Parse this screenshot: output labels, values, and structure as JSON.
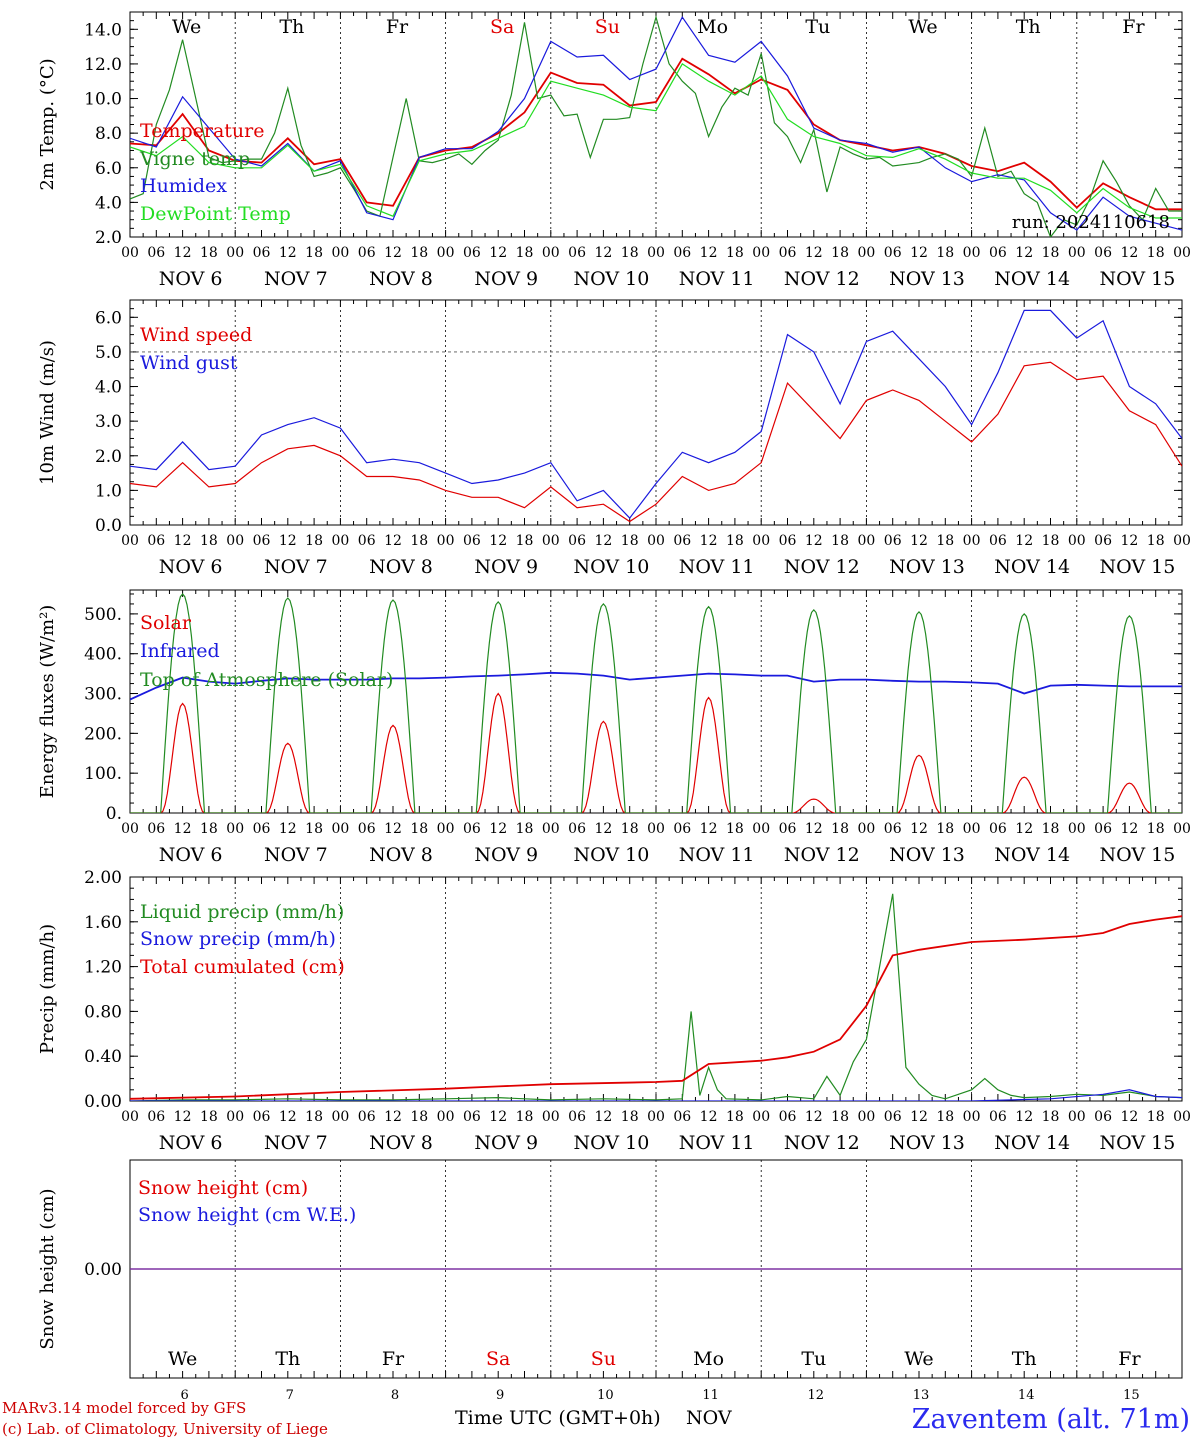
{
  "footer": {
    "credit_line1": "MARv3.14 model forced by GFS",
    "credit_line2": "(c) Lab. of Climatology, University of Liege",
    "time_label": "Time UTC (GMT+0h)",
    "month_label": "NOV",
    "station": "Zaventem (alt. 71m)"
  },
  "colors": {
    "temperature": "#e00000",
    "vigne": "#228b22",
    "humidex": "#1a1add",
    "dewpoint": "#22dd22",
    "snow_line": "#7a2aa0",
    "credit": "#cc0000",
    "station": "#2a2aee"
  },
  "days": {
    "weekday_labels": [
      "We",
      "Th",
      "Fr",
      "Sa",
      "Su",
      "Mo",
      "Tu",
      "We",
      "Th",
      "Fr"
    ],
    "weekend_flags": [
      false,
      false,
      false,
      true,
      true,
      false,
      false,
      false,
      false,
      false
    ],
    "date_labels": [
      "NOV  6",
      "NOV  7",
      "NOV  8",
      "NOV  9",
      "NOV 10",
      "NOV 11",
      "NOV 12",
      "NOV 13",
      "NOV 14",
      "NOV 15"
    ],
    "day_numbers": [
      "6",
      "7",
      "8",
      "9",
      "10",
      "11",
      "12",
      "13",
      "14",
      "15"
    ],
    "hour_labels": [
      "00",
      "06",
      "12",
      "18"
    ],
    "final_hour_label": "00"
  },
  "chart_data": [
    {
      "type": "line",
      "ylabel": "2m Temp. (°C)",
      "ylim": [
        2.0,
        15.0
      ],
      "yticks": [
        "2.0",
        "4.0",
        "6.0",
        "8.0",
        "10.0",
        "12.0",
        "14.0"
      ],
      "annotation": "run: 2024110618",
      "x_unit": "hours since NOV 6 00 UTC",
      "series": [
        {
          "name": "Temperature",
          "color": "#e00000",
          "x": [
            0,
            6,
            12,
            18,
            24,
            30,
            36,
            42,
            48,
            54,
            60,
            66,
            72,
            78,
            84,
            90,
            96,
            102,
            108,
            114,
            120,
            126,
            132,
            138,
            144,
            150,
            156,
            162,
            168,
            174,
            180,
            186,
            192,
            198,
            204,
            210,
            216,
            222,
            228,
            234,
            240
          ],
          "values": [
            7.4,
            7.3,
            9.1,
            7.0,
            6.4,
            6.3,
            7.7,
            6.2,
            6.5,
            4.0,
            3.8,
            6.6,
            7.0,
            7.2,
            8.0,
            9.2,
            11.5,
            10.9,
            10.8,
            9.6,
            9.8,
            12.3,
            11.4,
            10.3,
            11.1,
            10.5,
            8.5,
            7.6,
            7.3,
            7.0,
            7.2,
            6.8,
            6.1,
            5.8,
            6.3,
            5.2,
            3.7,
            5.1,
            4.3,
            3.6,
            3.6
          ]
        },
        {
          "name": "Vigne temp",
          "color": "#228b22",
          "x": [
            0,
            3,
            6,
            9,
            12,
            15,
            18,
            21,
            24,
            27,
            30,
            33,
            36,
            39,
            42,
            45,
            48,
            51,
            54,
            57,
            60,
            63,
            66,
            69,
            72,
            75,
            78,
            81,
            84,
            87,
            90,
            93,
            96,
            99,
            102,
            105,
            108,
            111,
            114,
            117,
            120,
            123,
            126,
            129,
            132,
            135,
            138,
            141,
            144,
            147,
            150,
            153,
            156,
            159,
            162,
            165,
            168,
            171,
            174,
            177,
            180,
            183,
            186,
            189,
            192,
            195,
            198,
            201,
            204,
            207,
            210,
            213,
            216,
            219,
            222,
            225,
            228,
            231,
            234,
            237,
            240
          ],
          "values": [
            4.2,
            4.5,
            8.5,
            10.5,
            13.4,
            10.0,
            6.6,
            6.3,
            6.4,
            6.5,
            6.5,
            8.0,
            10.6,
            7.3,
            5.5,
            5.7,
            6.0,
            4.8,
            3.5,
            3.2,
            6.6,
            10.0,
            6.4,
            6.3,
            6.5,
            6.8,
            6.2,
            7.0,
            7.6,
            10.2,
            14.4,
            10.0,
            10.2,
            9.0,
            9.1,
            6.6,
            8.8,
            8.8,
            8.9,
            12.0,
            14.7,
            12.0,
            11.0,
            10.3,
            7.8,
            9.5,
            10.6,
            10.2,
            12.6,
            8.6,
            7.8,
            6.3,
            8.2,
            4.6,
            7.2,
            6.8,
            6.5,
            6.6,
            6.1,
            6.2,
            6.3,
            6.6,
            6.8,
            6.5,
            5.5,
            8.3,
            5.5,
            5.8,
            4.5,
            4.0,
            2.0,
            3.0,
            2.7,
            4.2,
            6.4,
            5.2,
            3.8,
            3.0,
            4.8,
            3.5,
            3.5
          ]
        },
        {
          "name": "Humidex",
          "color": "#1a1add",
          "x": [
            0,
            6,
            12,
            18,
            24,
            30,
            36,
            42,
            48,
            54,
            60,
            66,
            72,
            78,
            84,
            90,
            96,
            102,
            108,
            114,
            120,
            126,
            132,
            138,
            144,
            150,
            156,
            162,
            168,
            174,
            180,
            186,
            192,
            198,
            204,
            210,
            216,
            222,
            228,
            234,
            240
          ],
          "values": [
            7.7,
            7.2,
            10.1,
            8.3,
            6.5,
            6.1,
            7.4,
            5.8,
            6.4,
            3.4,
            3.0,
            6.6,
            7.1,
            7.1,
            8.1,
            10.0,
            13.3,
            12.4,
            12.5,
            11.1,
            11.7,
            14.7,
            12.5,
            12.1,
            13.3,
            11.3,
            8.3,
            7.6,
            7.4,
            6.9,
            7.2,
            6.0,
            5.2,
            5.6,
            5.3,
            3.4,
            2.4,
            4.3,
            3.2,
            2.8,
            2.4
          ]
        },
        {
          "name": "DewPoint Temp",
          "color": "#22dd22",
          "x": [
            0,
            6,
            12,
            18,
            24,
            30,
            36,
            42,
            48,
            54,
            60,
            66,
            72,
            78,
            84,
            90,
            96,
            102,
            108,
            114,
            120,
            126,
            132,
            138,
            144,
            150,
            156,
            162,
            168,
            174,
            180,
            186,
            192,
            198,
            204,
            210,
            216,
            222,
            228,
            234,
            240
          ],
          "values": [
            7.2,
            6.7,
            7.8,
            6.3,
            6.0,
            6.0,
            7.3,
            5.8,
            6.2,
            3.8,
            3.2,
            6.4,
            6.8,
            7.0,
            7.7,
            8.4,
            11.0,
            10.6,
            10.2,
            9.5,
            9.3,
            12.0,
            11.0,
            10.2,
            11.3,
            8.8,
            7.8,
            7.4,
            6.7,
            6.6,
            7.1,
            6.5,
            5.7,
            5.4,
            5.4,
            4.7,
            3.4,
            4.8,
            3.7,
            3.1,
            3.1
          ]
        }
      ]
    },
    {
      "type": "line",
      "ylabel": "10m Wind (m/s)",
      "ylim": [
        0.0,
        6.5
      ],
      "yticks": [
        "0.0",
        "1.0",
        "2.0",
        "3.0",
        "4.0",
        "5.0",
        "6.0"
      ],
      "reference_line": 5.0,
      "x_unit": "hours since NOV 6 00 UTC",
      "series": [
        {
          "name": "Wind speed",
          "color": "#e00000",
          "x": [
            0,
            6,
            12,
            18,
            24,
            30,
            36,
            42,
            48,
            54,
            60,
            66,
            72,
            78,
            84,
            90,
            96,
            102,
            108,
            114,
            120,
            126,
            132,
            138,
            144,
            150,
            156,
            162,
            168,
            174,
            180,
            186,
            192,
            198,
            204,
            210,
            216,
            222,
            228,
            234,
            240
          ],
          "values": [
            1.2,
            1.1,
            1.8,
            1.1,
            1.2,
            1.8,
            2.2,
            2.3,
            2.0,
            1.4,
            1.4,
            1.3,
            1.0,
            0.8,
            0.8,
            0.5,
            1.1,
            0.5,
            0.6,
            0.1,
            0.6,
            1.4,
            1.0,
            1.2,
            1.8,
            4.1,
            3.3,
            2.5,
            3.6,
            3.9,
            3.6,
            3.0,
            2.4,
            3.2,
            4.6,
            4.7,
            4.2,
            4.3,
            3.3,
            2.9,
            1.7
          ]
        },
        {
          "name": "Wind gust",
          "color": "#1a1add",
          "x": [
            0,
            6,
            12,
            18,
            24,
            30,
            36,
            42,
            48,
            54,
            60,
            66,
            72,
            78,
            84,
            90,
            96,
            102,
            108,
            114,
            120,
            126,
            132,
            138,
            144,
            150,
            156,
            162,
            168,
            174,
            180,
            186,
            192,
            198,
            204,
            210,
            216,
            222,
            228,
            234,
            240
          ],
          "values": [
            1.7,
            1.6,
            2.4,
            1.6,
            1.7,
            2.6,
            2.9,
            3.1,
            2.8,
            1.8,
            1.9,
            1.8,
            1.5,
            1.2,
            1.3,
            1.5,
            1.8,
            0.7,
            1.0,
            0.2,
            1.2,
            2.1,
            1.8,
            2.1,
            2.7,
            5.5,
            5.0,
            3.5,
            5.3,
            5.6,
            4.8,
            4.0,
            2.9,
            4.4,
            6.2,
            6.2,
            5.4,
            5.9,
            4.0,
            3.5,
            2.5
          ]
        }
      ]
    },
    {
      "type": "line",
      "ylabel": "Energy fluxes (W/m²)",
      "ylim": [
        0,
        560
      ],
      "yticks": [
        "0.",
        "100.",
        "200.",
        "300.",
        "400.",
        "500."
      ],
      "x_unit": "hours since NOV 6 00 UTC",
      "series": [
        {
          "name": "Solar",
          "color": "#e00000",
          "day_peaks": [
            275,
            175,
            220,
            300,
            230,
            290,
            35,
            145,
            90,
            75
          ]
        },
        {
          "name": "Infrared",
          "color": "#1a1add",
          "x": [
            0,
            6,
            12,
            18,
            24,
            30,
            36,
            42,
            48,
            54,
            60,
            66,
            72,
            78,
            84,
            90,
            96,
            102,
            108,
            114,
            120,
            126,
            132,
            138,
            144,
            150,
            156,
            162,
            168,
            174,
            180,
            186,
            192,
            198,
            204,
            210,
            216,
            222,
            228,
            234,
            240
          ],
          "values": [
            285,
            315,
            340,
            330,
            325,
            332,
            338,
            335,
            335,
            335,
            338,
            338,
            340,
            343,
            345,
            348,
            352,
            350,
            345,
            335,
            340,
            345,
            350,
            348,
            345,
            345,
            330,
            335,
            335,
            332,
            330,
            330,
            328,
            325,
            300,
            320,
            322,
            320,
            318,
            318,
            318
          ]
        },
        {
          "name": "Top of Atmosphere (Solar)",
          "color": "#228b22",
          "day_peaks": [
            550,
            540,
            535,
            530,
            525,
            518,
            510,
            505,
            500,
            495
          ]
        }
      ]
    },
    {
      "type": "line",
      "ylabel": "Precip (mm/h)",
      "ylim": [
        0.0,
        2.0
      ],
      "yticks": [
        "0.00",
        "0.40",
        "0.80",
        "1.20",
        "1.60",
        "2.00"
      ],
      "x_unit": "hours since NOV 6 00 UTC",
      "series": [
        {
          "name": "Liquid precip (mm/h)",
          "color": "#228b22",
          "x": [
            0,
            12,
            24,
            36,
            48,
            60,
            72,
            84,
            90,
            96,
            108,
            120,
            126,
            128,
            130,
            132,
            134,
            136,
            144,
            150,
            156,
            159,
            162,
            165,
            168,
            171,
            174,
            177,
            180,
            183,
            186,
            192,
            195,
            198,
            201,
            204,
            210,
            216,
            222,
            228,
            234,
            240
          ],
          "values": [
            0.0,
            0.01,
            0.01,
            0.02,
            0.01,
            0.01,
            0.02,
            0.03,
            0.02,
            0.01,
            0.02,
            0.01,
            0.02,
            0.8,
            0.05,
            0.3,
            0.1,
            0.02,
            0.01,
            0.04,
            0.02,
            0.22,
            0.05,
            0.35,
            0.55,
            1.2,
            1.85,
            0.3,
            0.15,
            0.05,
            0.02,
            0.1,
            0.2,
            0.1,
            0.05,
            0.03,
            0.04,
            0.06,
            0.05,
            0.08,
            0.04,
            0.03
          ]
        },
        {
          "name": "Snow precip (mm/h)",
          "color": "#1a1add",
          "x": [
            0,
            96,
            192,
            210,
            222,
            228,
            234,
            240
          ],
          "values": [
            0.0,
            0.0,
            0.0,
            0.02,
            0.06,
            0.1,
            0.04,
            0.03
          ]
        },
        {
          "name": "Total cumulated (cm)",
          "color": "#e00000",
          "x": [
            0,
            24,
            48,
            72,
            84,
            96,
            120,
            126,
            132,
            144,
            150,
            156,
            162,
            168,
            174,
            180,
            192,
            204,
            216,
            222,
            228,
            234,
            240
          ],
          "values": [
            0.02,
            0.04,
            0.08,
            0.11,
            0.13,
            0.15,
            0.17,
            0.18,
            0.33,
            0.36,
            0.39,
            0.44,
            0.55,
            0.85,
            1.3,
            1.35,
            1.42,
            1.44,
            1.47,
            1.5,
            1.58,
            1.62,
            1.65
          ]
        }
      ]
    },
    {
      "type": "line",
      "ylabel": "Snow height (cm)",
      "ylim": [
        -1.0,
        1.0
      ],
      "yticks": [
        "0.00"
      ],
      "x_unit": "hours since NOV 6 00 UTC",
      "series": [
        {
          "name": "Snow height (cm)",
          "color": "#e00000",
          "x": [
            0,
            240
          ],
          "values": [
            0.0,
            0.0
          ]
        },
        {
          "name": "Snow height (cm W.E.)",
          "color": "#1a1add",
          "x": [
            0,
            240
          ],
          "values": [
            0.0,
            0.0
          ]
        }
      ]
    }
  ]
}
